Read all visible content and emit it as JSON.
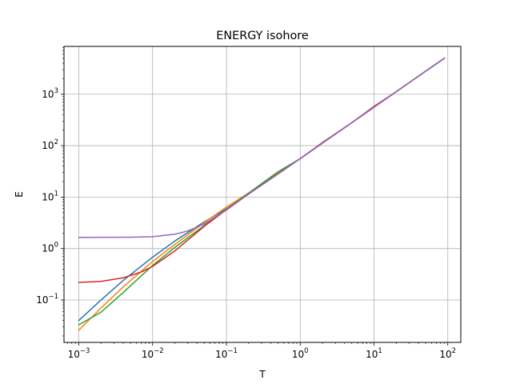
{
  "chart_data": {
    "type": "line",
    "title": "ENERGY isohore",
    "xlabel": "T",
    "ylabel": "E",
    "xscale": "log",
    "yscale": "log",
    "xlim": [
      0.00063,
      150
    ],
    "ylim": [
      0.015,
      8500
    ],
    "grid": true,
    "legend": "none",
    "xticks": [
      {
        "value": 0.001,
        "base": "10",
        "exp": "−3"
      },
      {
        "value": 0.01,
        "base": "10",
        "exp": "−2"
      },
      {
        "value": 0.1,
        "base": "10",
        "exp": "−1"
      },
      {
        "value": 1,
        "base": "10",
        "exp": "0"
      },
      {
        "value": 10,
        "base": "10",
        "exp": "1"
      },
      {
        "value": 100,
        "base": "10",
        "exp": "2"
      }
    ],
    "yticks": [
      {
        "value": 0.1,
        "base": "10",
        "exp": "−1"
      },
      {
        "value": 1,
        "base": "10",
        "exp": "0"
      },
      {
        "value": 10,
        "base": "10",
        "exp": "1"
      },
      {
        "value": 100,
        "base": "10",
        "exp": "2"
      },
      {
        "value": 1000,
        "base": "10",
        "exp": "3"
      }
    ],
    "series": [
      {
        "color": "#1f77b4",
        "points": [
          [
            0.001,
            0.04
          ],
          [
            0.002,
            0.1
          ],
          [
            0.004,
            0.24
          ],
          [
            0.01,
            0.68
          ],
          [
            0.02,
            1.4
          ],
          [
            0.05,
            3.3
          ],
          [
            0.1,
            5.9
          ],
          [
            0.2,
            11.5
          ],
          [
            0.5,
            28.5
          ],
          [
            1,
            56
          ],
          [
            2,
            112
          ],
          [
            5,
            280
          ],
          [
            10,
            560
          ],
          [
            20,
            1120
          ],
          [
            50,
            2800
          ],
          [
            90,
            5000
          ]
        ]
      },
      {
        "color": "#ff7f0e",
        "points": [
          [
            0.001,
            0.026
          ],
          [
            0.002,
            0.07
          ],
          [
            0.004,
            0.18
          ],
          [
            0.01,
            0.56
          ],
          [
            0.02,
            1.2
          ],
          [
            0.05,
            3.2
          ],
          [
            0.1,
            6.4
          ],
          [
            0.2,
            12
          ],
          [
            0.5,
            29
          ],
          [
            1,
            56
          ],
          [
            2,
            112
          ],
          [
            5,
            280
          ],
          [
            10,
            560
          ],
          [
            20,
            1120
          ],
          [
            50,
            2800
          ],
          [
            90,
            5000
          ]
        ]
      },
      {
        "color": "#2ca02c",
        "points": [
          [
            0.001,
            0.033
          ],
          [
            0.002,
            0.058
          ],
          [
            0.004,
            0.14
          ],
          [
            0.01,
            0.47
          ],
          [
            0.02,
            1.05
          ],
          [
            0.05,
            2.8
          ],
          [
            0.1,
            5.8
          ],
          [
            0.2,
            12
          ],
          [
            0.5,
            31
          ],
          [
            1,
            56
          ],
          [
            2,
            112
          ],
          [
            5,
            280
          ],
          [
            10,
            560
          ],
          [
            20,
            1120
          ],
          [
            50,
            2800
          ],
          [
            90,
            5000
          ]
        ]
      },
      {
        "color": "#d62728",
        "points": [
          [
            0.001,
            0.22
          ],
          [
            0.002,
            0.23
          ],
          [
            0.004,
            0.27
          ],
          [
            0.007,
            0.35
          ],
          [
            0.01,
            0.45
          ],
          [
            0.02,
            0.9
          ],
          [
            0.05,
            2.7
          ],
          [
            0.1,
            5.7
          ],
          [
            0.2,
            11.5
          ],
          [
            0.5,
            28.5
          ],
          [
            1,
            56
          ],
          [
            2,
            115
          ],
          [
            5,
            280
          ],
          [
            10,
            580
          ],
          [
            20,
            1120
          ],
          [
            50,
            2800
          ],
          [
            90,
            5000
          ]
        ]
      },
      {
        "color": "#9467bd",
        "points": [
          [
            0.001,
            1.65
          ],
          [
            0.005,
            1.66
          ],
          [
            0.01,
            1.7
          ],
          [
            0.02,
            1.9
          ],
          [
            0.03,
            2.2
          ],
          [
            0.05,
            3.0
          ],
          [
            0.1,
            5.6
          ],
          [
            0.2,
            11.5
          ],
          [
            0.5,
            28
          ],
          [
            1,
            56
          ],
          [
            2,
            112
          ],
          [
            5,
            280
          ],
          [
            10,
            560
          ],
          [
            20,
            1120
          ],
          [
            50,
            2800
          ],
          [
            90,
            5000
          ]
        ]
      }
    ]
  }
}
